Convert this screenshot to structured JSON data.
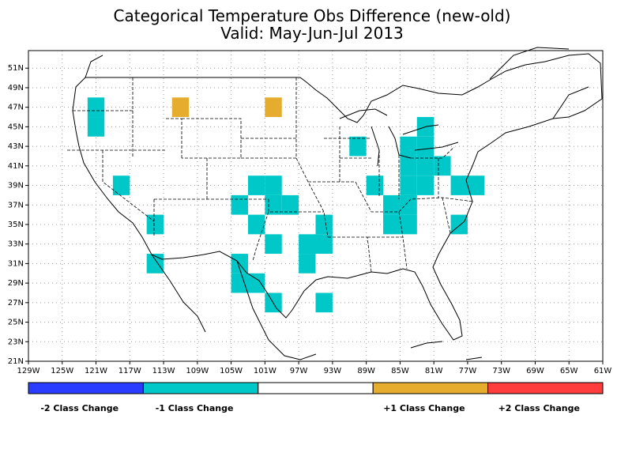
{
  "title": {
    "line1": "Categorical Temperature Obs Difference (new-old)",
    "line2": "Valid: May-Jun-Jul 2013"
  },
  "axes": {
    "lon_ticks": [
      -129,
      -125,
      -121,
      -117,
      -113,
      -109,
      -105,
      -101,
      -97,
      -93,
      -89,
      -85,
      -81,
      -77,
      -73,
      -69,
      -65,
      -61
    ],
    "lon_labels": [
      "129W",
      "125W",
      "121W",
      "117W",
      "113W",
      "109W",
      "105W",
      "101W",
      "97W",
      "93W",
      "89W",
      "85W",
      "81W",
      "77W",
      "73W",
      "69W",
      "65W",
      "61W"
    ],
    "lat_ticks": [
      21,
      23,
      25,
      27,
      29,
      31,
      33,
      35,
      37,
      39,
      41,
      43,
      45,
      47,
      49,
      51
    ],
    "lat_labels": [
      "21N",
      "23N",
      "25N",
      "27N",
      "29N",
      "31N",
      "33N",
      "35N",
      "37N",
      "39N",
      "41N",
      "43N",
      "45N",
      "47N",
      "49N",
      "51N"
    ],
    "lon_range": [
      -129,
      -61
    ],
    "lat_range": [
      21,
      52.8
    ]
  },
  "legend": {
    "colors": [
      "#2a3cff",
      "#00c8c8",
      "#ffffff",
      "#e6ac2e",
      "#ff3d3d"
    ],
    "labels": [
      "-2 Class Change",
      "-1 Class Change",
      "",
      "+1 Class Change",
      "+2 Class Change"
    ]
  },
  "cell_size_deg": 2,
  "cells": {
    "minus1_color": "#00c8c8",
    "plus1_color": "#e6ac2e",
    "minus1": [
      [
        -121,
        47
      ],
      [
        -121,
        45
      ],
      [
        -118,
        39
      ],
      [
        -114,
        35
      ],
      [
        -114,
        31
      ],
      [
        -102,
        39
      ],
      [
        -100,
        39
      ],
      [
        -98,
        37
      ],
      [
        -100,
        37
      ],
      [
        -104,
        37
      ],
      [
        -102,
        35
      ],
      [
        -100,
        33
      ],
      [
        -96,
        33
      ],
      [
        -94,
        33
      ],
      [
        -94,
        35
      ],
      [
        -104,
        29
      ],
      [
        -104,
        31
      ],
      [
        -102,
        29
      ],
      [
        -100,
        27
      ],
      [
        -96,
        31
      ],
      [
        -94,
        27
      ],
      [
        -90,
        43
      ],
      [
        -88,
        39
      ],
      [
        -84,
        37
      ],
      [
        -84,
        35
      ],
      [
        -86,
        37
      ],
      [
        -86,
        35
      ],
      [
        -84,
        39
      ],
      [
        -82,
        39
      ],
      [
        -82,
        41
      ],
      [
        -84,
        41
      ],
      [
        -84,
        43
      ],
      [
        -82,
        43
      ],
      [
        -82,
        45
      ],
      [
        -80,
        41
      ],
      [
        -78,
        39
      ],
      [
        -76,
        39
      ],
      [
        -78,
        35
      ]
    ],
    "plus1": [
      [
        -111,
        47
      ],
      [
        -100,
        47
      ]
    ]
  }
}
